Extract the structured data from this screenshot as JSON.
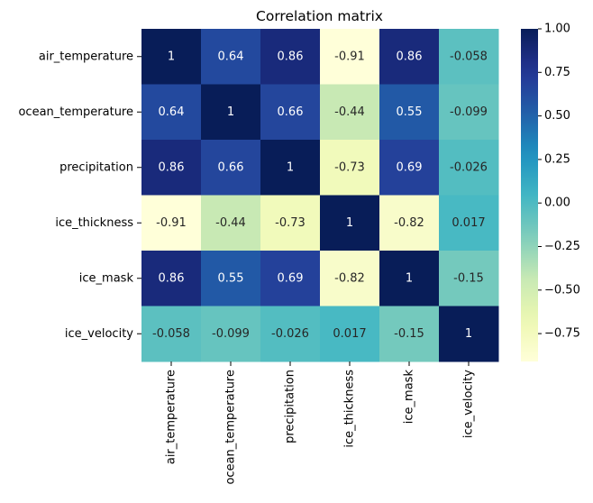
{
  "chart_data": {
    "type": "heatmap",
    "title": "Correlation matrix",
    "row_labels": [
      "air_temperature",
      "ocean_temperature",
      "precipitation",
      "ice_thickness",
      "ice_mask",
      "ice_velocity"
    ],
    "col_labels": [
      "air_temperature",
      "ocean_temperature",
      "precipitation",
      "ice_thickness",
      "ice_mask",
      "ice_velocity"
    ],
    "values": [
      [
        1,
        0.64,
        0.86,
        -0.91,
        0.86,
        -0.058
      ],
      [
        0.64,
        1,
        0.66,
        -0.44,
        0.55,
        -0.099
      ],
      [
        0.86,
        0.66,
        1,
        -0.73,
        0.69,
        -0.026
      ],
      [
        -0.91,
        -0.44,
        -0.73,
        1,
        -0.82,
        0.017
      ],
      [
        0.86,
        0.55,
        0.69,
        -0.82,
        1,
        -0.15
      ],
      [
        -0.058,
        -0.099,
        -0.026,
        0.017,
        -0.15,
        1
      ]
    ],
    "cell_labels": [
      [
        "1",
        "0.64",
        "0.86",
        "-0.91",
        "0.86",
        "-0.058"
      ],
      [
        "0.64",
        "1",
        "0.66",
        "-0.44",
        "0.55",
        "-0.099"
      ],
      [
        "0.86",
        "0.66",
        "1",
        "-0.73",
        "0.69",
        "-0.026"
      ],
      [
        "-0.91",
        "-0.44",
        "-0.73",
        "1",
        "-0.82",
        "0.017"
      ],
      [
        "0.86",
        "0.55",
        "0.69",
        "-0.82",
        "1",
        "-0.15"
      ],
      [
        "-0.058",
        "-0.099",
        "-0.026",
        "0.017",
        "-0.15",
        "1"
      ]
    ],
    "colormap": "YlGnBu",
    "colorbar": {
      "vmin": -0.91,
      "vmax": 1.0,
      "ticks": [
        1.0,
        0.75,
        0.5,
        0.25,
        0.0,
        -0.25,
        -0.5,
        -0.75
      ],
      "tick_labels": [
        "1.00",
        "0.75",
        "0.50",
        "0.25",
        "0.00",
        "−0.25",
        "−0.50",
        "−0.75"
      ]
    }
  }
}
